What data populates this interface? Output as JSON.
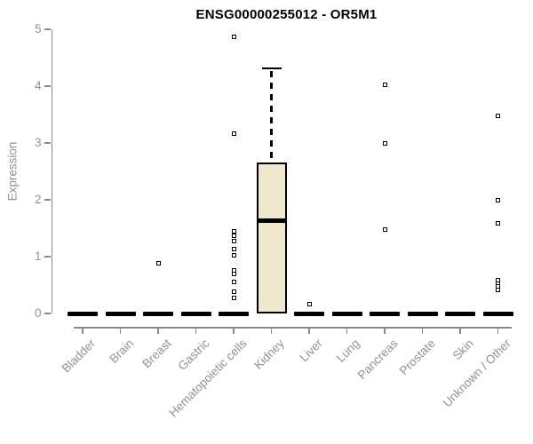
{
  "title": "ENSG00000255012 - OR5M1",
  "y_axis": {
    "label": "Expression",
    "ticks": [
      "0",
      "1",
      "2",
      "3",
      "4",
      "5"
    ]
  },
  "chart_data": {
    "type": "boxplot",
    "title": "ENSG00000255012 - OR5M1",
    "xlabel": "",
    "ylabel": "Expression",
    "ylim": [
      0,
      5
    ],
    "y_ticks": [
      0,
      1,
      2,
      3,
      4,
      5
    ],
    "grid": false,
    "legend": false,
    "categories": [
      "Bladder",
      "Brain",
      "Breast",
      "Gastric",
      "Hematopoietic cells",
      "Kidney",
      "Liver",
      "Lung",
      "Pancreas",
      "Prostate",
      "Skin",
      "Unknown / Other"
    ],
    "boxes": [
      {
        "category": "Bladder",
        "q1": 0,
        "median": 0,
        "q3": 0,
        "whisker_low": 0,
        "whisker_high": 0,
        "outliers": []
      },
      {
        "category": "Brain",
        "q1": 0,
        "median": 0,
        "q3": 0,
        "whisker_low": 0,
        "whisker_high": 0,
        "outliers": []
      },
      {
        "category": "Breast",
        "q1": 0,
        "median": 0,
        "q3": 0,
        "whisker_low": 0,
        "whisker_high": 0,
        "outliers": [
          0.88
        ]
      },
      {
        "category": "Gastric",
        "q1": 0,
        "median": 0,
        "q3": 0,
        "whisker_low": 0,
        "whisker_high": 0,
        "outliers": []
      },
      {
        "category": "Hematopoietic cells",
        "q1": 0,
        "median": 0,
        "q3": 0,
        "whisker_low": 0,
        "whisker_high": 0,
        "outliers": [
          4.86,
          3.16,
          1.44,
          1.36,
          1.27,
          1.13,
          1.03,
          0.76,
          0.69,
          0.56,
          0.38,
          0.27
        ]
      },
      {
        "category": "Kidney",
        "q1": 0,
        "median": 1.63,
        "q3": 2.66,
        "whisker_low": 0,
        "whisker_high": 4.31,
        "outliers": []
      },
      {
        "category": "Liver",
        "q1": 0,
        "median": 0,
        "q3": 0,
        "whisker_low": 0,
        "whisker_high": 0,
        "outliers": [
          0.16
        ]
      },
      {
        "category": "Lung",
        "q1": 0,
        "median": 0,
        "q3": 0,
        "whisker_low": 0,
        "whisker_high": 0,
        "outliers": []
      },
      {
        "category": "Pancreas",
        "q1": 0,
        "median": 0,
        "q3": 0,
        "whisker_low": 0,
        "whisker_high": 0,
        "outliers": [
          4.02,
          2.99,
          1.47
        ]
      },
      {
        "category": "Prostate",
        "q1": 0,
        "median": 0,
        "q3": 0,
        "whisker_low": 0,
        "whisker_high": 0,
        "outliers": []
      },
      {
        "category": "Skin",
        "q1": 0,
        "median": 0,
        "q3": 0,
        "whisker_low": 0,
        "whisker_high": 0,
        "outliers": []
      },
      {
        "category": "Unknown / Other",
        "q1": 0,
        "median": 0,
        "q3": 0,
        "whisker_low": 0,
        "whisker_high": 0,
        "outliers": [
          3.47,
          2.0,
          1.58,
          0.59,
          0.53,
          0.47,
          0.41
        ]
      }
    ],
    "colors": {
      "box_fill": "#EDE8CE",
      "box_border": "#000000",
      "median": "#000000",
      "axis": "#898989",
      "tick_label": "#929292",
      "title": "#000000",
      "background": "#FFFFFF"
    }
  }
}
